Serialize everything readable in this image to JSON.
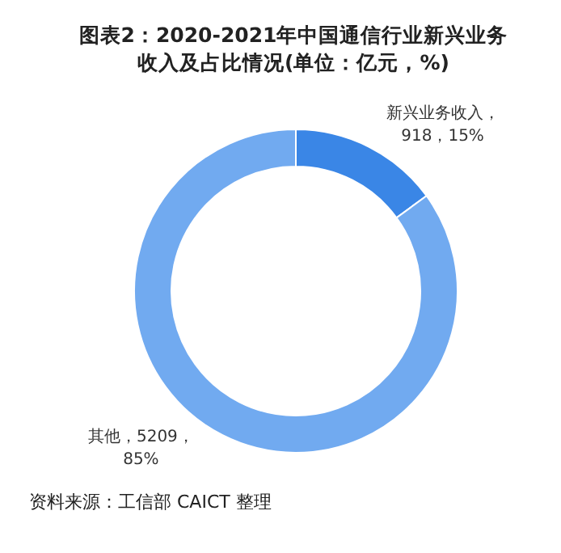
{
  "chart_data": {
    "type": "donut",
    "title": "图表2：2020-2021年中国通信行业新兴业务收入及占比情况(单位：亿元，%)",
    "categories": [
      "新兴业务收入",
      "其他"
    ],
    "values": [
      918,
      5209
    ],
    "colors": [
      "#3a86e6",
      "#71aaf0"
    ],
    "value_labels": [
      "，918，15%",
      "，5209，85%"
    ],
    "annotations": [
      "资料来源：工信部 CAICT 整理"
    ]
  }
}
